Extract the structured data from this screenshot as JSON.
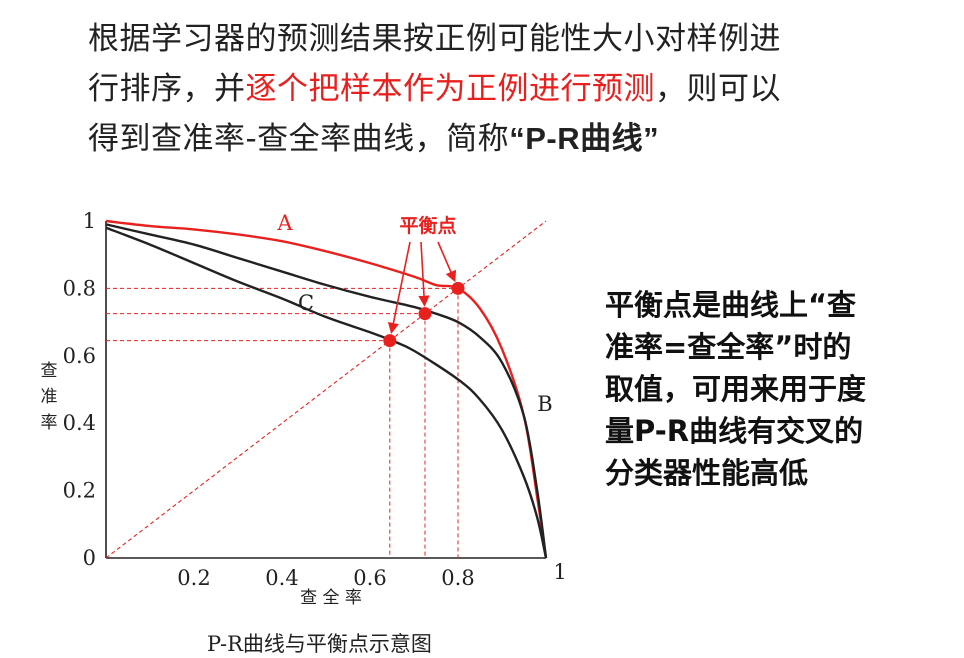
{
  "intro": {
    "line1": "根据学习器的预测结果按正例可能性大小对样例进",
    "line2_a": "行排序，并",
    "line2_red": "逐个把样本作为正例进行预测",
    "line2_b": "，则可以",
    "line3_a": "得到查准率-查全率曲线，简称",
    "line3_bold": "“P-R曲线”"
  },
  "side_note": {
    "line1": "平衡点是曲线上“查",
    "line2": "准率=查全率”时的",
    "line3": "取值，可用来用于度",
    "line4": "量P-R曲线有交叉的",
    "line5": "分类器性能高低"
  },
  "caption": "P-R曲线与平衡点示意图",
  "chart_data": {
    "type": "line",
    "xlabel": "查 全 率",
    "ylabel": "查准率",
    "xlim": [
      0,
      1
    ],
    "ylim": [
      0,
      1
    ],
    "x_ticks": [
      "0.2",
      "0.4",
      "0.6",
      "0.8",
      "1"
    ],
    "y_ticks": [
      "0",
      "0.2",
      "0.4",
      "0.6",
      "0.8",
      "1"
    ],
    "grid": false,
    "break_even_label": "平衡点",
    "series": [
      {
        "name": "A",
        "color": "#e8211f",
        "x": [
          0,
          0.1,
          0.2,
          0.3,
          0.4,
          0.5,
          0.6,
          0.7,
          0.75,
          0.8,
          0.85,
          0.9,
          0.95,
          0.98,
          1
        ],
        "y": [
          1,
          0.985,
          0.975,
          0.96,
          0.94,
          0.91,
          0.875,
          0.835,
          0.81,
          0.8,
          0.74,
          0.62,
          0.42,
          0.18,
          0
        ]
      },
      {
        "name": "B",
        "color": "#222222",
        "x": [
          0,
          0.1,
          0.2,
          0.3,
          0.4,
          0.5,
          0.6,
          0.7,
          0.75,
          0.8,
          0.85,
          0.9,
          0.95,
          0.98,
          1
        ],
        "y": [
          0.99,
          0.96,
          0.93,
          0.89,
          0.85,
          0.81,
          0.775,
          0.745,
          0.725,
          0.7,
          0.655,
          0.58,
          0.42,
          0.2,
          0
        ]
      },
      {
        "name": "C",
        "color": "#222222",
        "x": [
          0,
          0.1,
          0.2,
          0.3,
          0.4,
          0.5,
          0.6,
          0.65,
          0.7,
          0.8,
          0.85,
          0.9,
          0.95,
          0.98,
          1
        ],
        "y": [
          0.98,
          0.93,
          0.875,
          0.82,
          0.77,
          0.715,
          0.67,
          0.645,
          0.615,
          0.53,
          0.47,
          0.38,
          0.24,
          0.12,
          0
        ]
      }
    ],
    "reference_line": {
      "x": [
        0,
        1
      ],
      "y": [
        0,
        1
      ],
      "style": "dashed",
      "color": "#e8211f"
    },
    "break_even_points": [
      {
        "curve": "C",
        "x": 0.645,
        "y": 0.645
      },
      {
        "curve": "B",
        "x": 0.725,
        "y": 0.725
      },
      {
        "curve": "A",
        "x": 0.8,
        "y": 0.8
      }
    ]
  }
}
